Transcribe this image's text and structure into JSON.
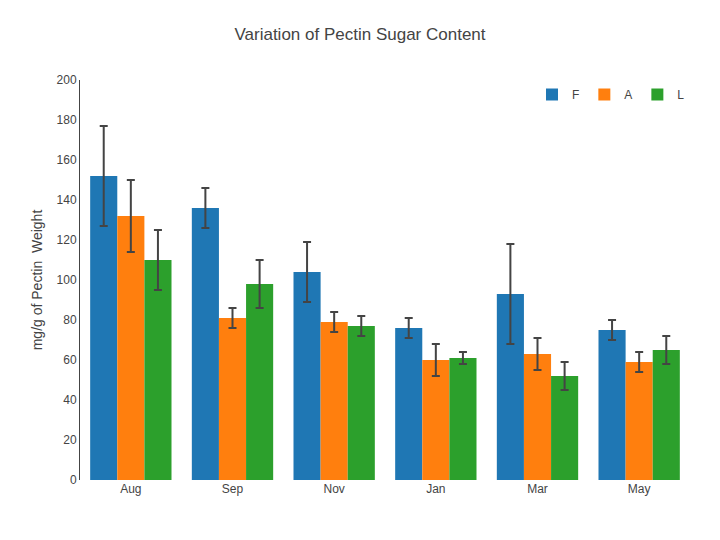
{
  "chart_data": {
    "type": "bar",
    "title": "Variation of Pectin Sugar Content",
    "ylabel": "mg/g of Pectin  Weight",
    "categories": [
      "Aug",
      "Sep",
      "Nov",
      "Jan",
      "Mar",
      "May"
    ],
    "series": [
      {
        "name": "F",
        "values": [
          152,
          136,
          104,
          76,
          93,
          75
        ],
        "errors": [
          25,
          10,
          15,
          5,
          25,
          5
        ]
      },
      {
        "name": "A",
        "values": [
          132,
          81,
          79,
          60,
          63,
          59
        ],
        "errors": [
          18,
          5,
          5,
          8,
          8,
          5
        ]
      },
      {
        "name": "L",
        "values": [
          110,
          98,
          77,
          61,
          52,
          65
        ],
        "errors": [
          15,
          12,
          5,
          3,
          7,
          7
        ]
      }
    ],
    "ylim": [
      0,
      200
    ],
    "yticks": [
      0,
      20,
      40,
      60,
      80,
      100,
      120,
      140,
      160,
      180,
      200
    ],
    "grid": false,
    "legend": "upper right"
  }
}
